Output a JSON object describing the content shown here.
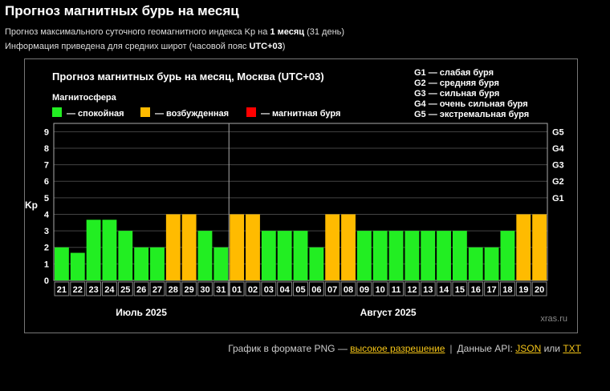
{
  "page": {
    "title": "Прогноз магнитных бурь на месяц",
    "line1": {
      "prefix": "Прогноз максимального суточного геомагнитного индекса Kp на ",
      "bold": "1 месяц",
      "suffix": " (31 день)"
    },
    "line2": {
      "prefix": "Информация приведена для средних широт (часовой пояс ",
      "bold": "UTC+03",
      "suffix": ")"
    }
  },
  "chart_data": {
    "type": "bar",
    "title": "Прогноз магнитных бурь на месяц, Москва (UTC+03)",
    "ylabel": "Kp",
    "ylim": [
      0,
      9.5
    ],
    "yticks": [
      "0",
      "1",
      "2",
      "3",
      "4",
      "5",
      "6",
      "7",
      "8",
      "9"
    ],
    "right_ticks": [
      {
        "label": "G1",
        "value": 5
      },
      {
        "label": "G2",
        "value": 6
      },
      {
        "label": "G3",
        "value": 7
      },
      {
        "label": "G4",
        "value": 8
      },
      {
        "label": "G5",
        "value": 9
      }
    ],
    "legend_title": "Магнитосфера",
    "legend": [
      {
        "label": "— спокойная",
        "color": "#22ee22"
      },
      {
        "label": "— возбужденная",
        "color": "#ffbb00"
      },
      {
        "label": "— магнитная буря",
        "color": "#ff0000"
      }
    ],
    "g_legend": [
      "G1 — слабая буря",
      "G2 — средняя буря",
      "G3 — сильная буря",
      "G4 — очень сильная буря",
      "G5 — экстремальная буря"
    ],
    "categories": [
      "21",
      "22",
      "23",
      "24",
      "25",
      "26",
      "27",
      "28",
      "29",
      "30",
      "31",
      "01",
      "02",
      "03",
      "04",
      "05",
      "06",
      "07",
      "08",
      "09",
      "10",
      "11",
      "12",
      "13",
      "14",
      "15",
      "16",
      "17",
      "18",
      "19",
      "20"
    ],
    "values": [
      2,
      1.67,
      3.67,
      3.67,
      3,
      2,
      2,
      4,
      4,
      3,
      2,
      4,
      4,
      3,
      3,
      3,
      2,
      4,
      4,
      3,
      3,
      3,
      3,
      3,
      3,
      3,
      2,
      2,
      3,
      4,
      4
    ],
    "months": [
      {
        "label": "Июль 2025",
        "from": 0,
        "to": 10
      },
      {
        "label": "Август 2025",
        "from": 11,
        "to": 30
      }
    ],
    "month_divider_after_index": 10,
    "watermark": "xras.ru",
    "colors": {
      "quiet": "#22ee22",
      "active": "#ffbb00",
      "storm": "#ff0000",
      "grid": "#444444"
    }
  },
  "footer": {
    "text1": "График в формате PNG — ",
    "link_hires": "высокое разрешение",
    "sep": "|",
    "text2": "Данные API: ",
    "link_json": "JSON",
    "or": " или ",
    "link_txt": "TXT"
  }
}
